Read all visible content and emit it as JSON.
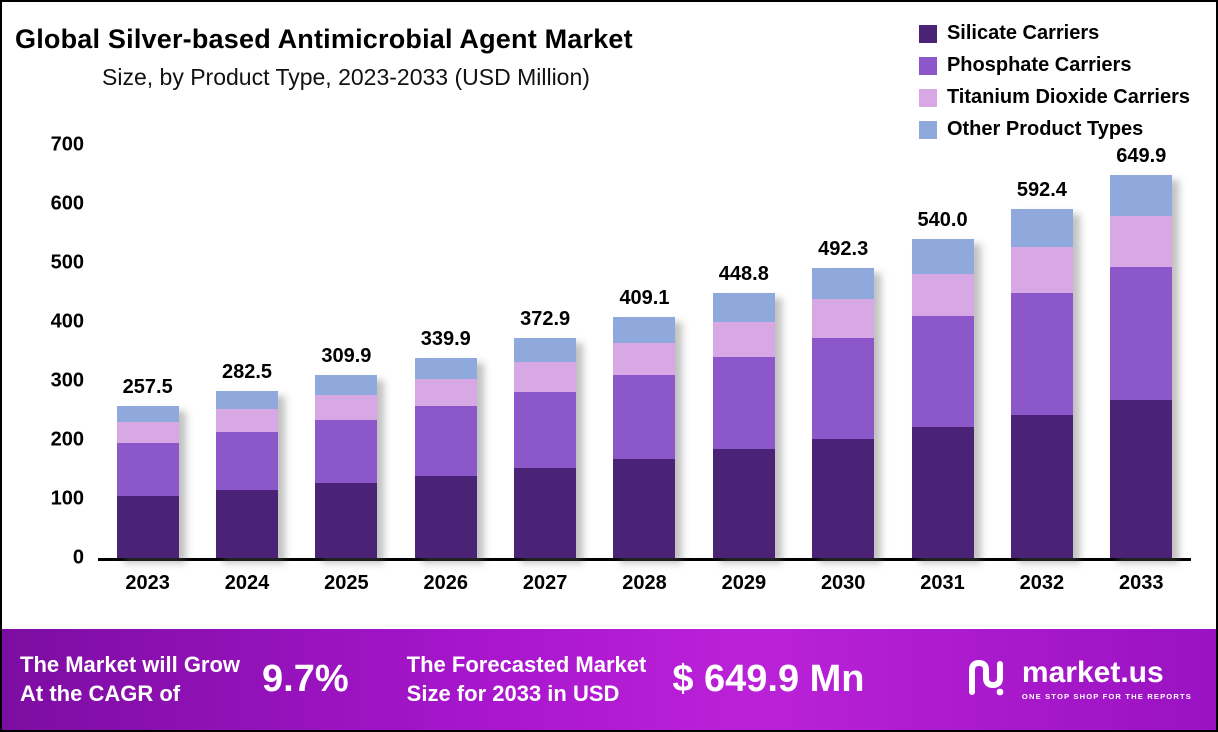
{
  "header": {
    "title": "Global Silver-based Antimicrobial Agent Market",
    "subtitle": "Size, by Product Type, 2023-2033 (USD Million)"
  },
  "chart_data": {
    "type": "bar",
    "stacked": true,
    "title": "Global Silver-based Antimicrobial Agent Market Size, by Product Type, 2023-2033 (USD Million)",
    "categories": [
      "2023",
      "2024",
      "2025",
      "2026",
      "2027",
      "2028",
      "2029",
      "2030",
      "2031",
      "2032",
      "2033"
    ],
    "series": [
      {
        "name": "Silicate Carriers",
        "color": "#4a2377",
        "values": [
          105,
          115,
          127,
          139,
          153,
          168,
          184,
          202,
          222,
          243,
          267
        ]
      },
      {
        "name": "Phosphate Carriers",
        "color": "#8c57c9",
        "values": [
          90,
          98,
          107,
          118,
          129,
          142,
          156,
          171,
          188,
          206,
          226
        ]
      },
      {
        "name": "Titanium Dioxide Carriers",
        "color": "#d7a8e3",
        "values": [
          35,
          39,
          42,
          46,
          50,
          55,
          60,
          66,
          72,
          79,
          87
        ]
      },
      {
        "name": "Other Product Types",
        "color": "#8fa9dc",
        "values": [
          27.5,
          30.5,
          33.9,
          36.9,
          40.9,
          44.1,
          48.8,
          53.3,
          58,
          64.4,
          69.9
        ]
      }
    ],
    "totals": [
      257.5,
      282.5,
      309.9,
      339.9,
      372.9,
      409.1,
      448.8,
      492.3,
      540.0,
      592.4,
      649.9
    ],
    "totals_display": [
      "257.5",
      "282.5",
      "309.9",
      "339.9",
      "372.9",
      "409.1",
      "448.8",
      "492.3",
      "540.0",
      "592.4",
      "649.9"
    ],
    "ylim": [
      0,
      700
    ],
    "yticks": [
      0,
      100,
      200,
      300,
      400,
      500,
      600,
      700
    ],
    "xlabel": "",
    "ylabel": "",
    "legend_position": "top-right",
    "grid": false
  },
  "banner": {
    "growth_line1": "The Market will Grow",
    "growth_line2": "At the CAGR of",
    "cagr": "9.7%",
    "forecast_line1": "The Forecasted Market",
    "forecast_line2": "Size for 2033 in USD",
    "forecast_value": "$ 649.9 Mn",
    "brand": "market.us",
    "tagline": "ONE STOP SHOP FOR THE REPORTS"
  }
}
